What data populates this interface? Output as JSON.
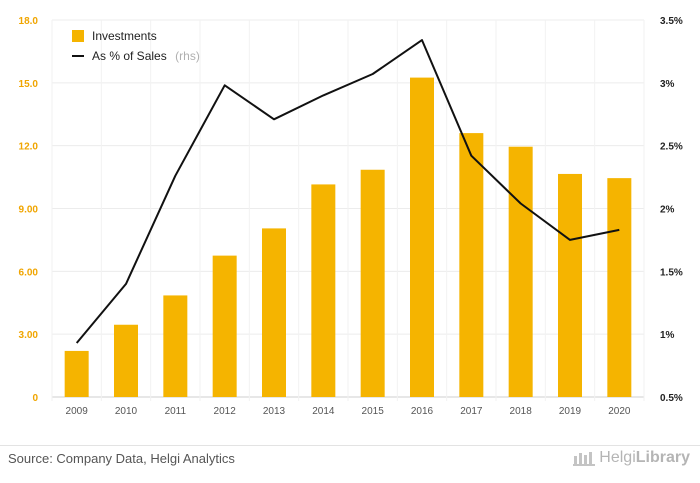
{
  "chart_data": {
    "type": "bar",
    "categories": [
      "2009",
      "2010",
      "2011",
      "2012",
      "2013",
      "2014",
      "2015",
      "2016",
      "2017",
      "2018",
      "2019",
      "2020"
    ],
    "series": [
      {
        "name": "Investments",
        "type": "bar",
        "axis": "left",
        "color": "#f5b400",
        "values": [
          2.2,
          3.45,
          4.85,
          6.75,
          8.05,
          10.15,
          10.85,
          15.25,
          12.6,
          11.95,
          10.65,
          10.45
        ]
      },
      {
        "name": "As % of Sales",
        "name_suffix": "(rhs)",
        "type": "line",
        "axis": "right",
        "color": "#111111",
        "values": [
          0.93,
          1.4,
          2.26,
          2.98,
          2.71,
          2.9,
          3.07,
          3.34,
          2.42,
          2.04,
          1.75,
          1.83
        ]
      }
    ],
    "y_left": {
      "lim": [
        0,
        18
      ],
      "ticks": [
        "0",
        "3.00",
        "6.00",
        "9.00",
        "12.0",
        "15.0",
        "18.0"
      ],
      "color": "#f0a500"
    },
    "y_right": {
      "lim": [
        0.5,
        3.5
      ],
      "ticks": [
        "0.5%",
        "1%",
        "1.5%",
        "2%",
        "2.5%",
        "3%",
        "3.5%"
      ]
    },
    "grid": true,
    "legend": "top-left"
  },
  "footer": {
    "source": "Source: Company Data, Helgi Analytics",
    "brand_prefix": "Helgi",
    "brand_suffix": "Library"
  }
}
